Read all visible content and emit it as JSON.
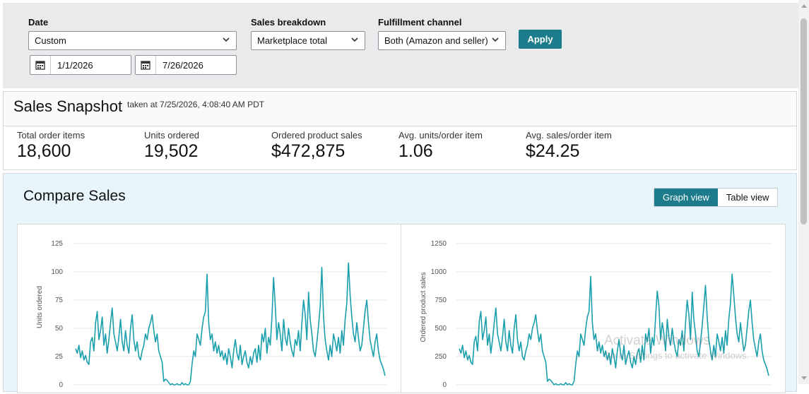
{
  "filters": {
    "date_label": "Date",
    "date_select": "Custom",
    "start_date": "1/1/2026",
    "end_date": "7/26/2026",
    "breakdown_label": "Sales breakdown",
    "breakdown_select": "Marketplace total",
    "channel_label": "Fulfillment channel",
    "channel_select": "Both (Amazon and seller)",
    "apply_label": "Apply"
  },
  "snapshot": {
    "title": "Sales Snapshot",
    "taken": "taken at 7/25/2026, 4:08:40 AM PDT",
    "metrics": [
      {
        "label": "Total order items",
        "value": "18,600"
      },
      {
        "label": "Units ordered",
        "value": "19,502"
      },
      {
        "label": "Ordered product sales",
        "value": "$472,875"
      },
      {
        "label": "Avg. units/order item",
        "value": "1.06"
      },
      {
        "label": "Avg. sales/order item",
        "value": "$24.25"
      }
    ]
  },
  "compare": {
    "title": "Compare Sales",
    "graph_view": "Graph view",
    "table_view": "Table view"
  },
  "watermark": {
    "line1": "Activate Windows",
    "line2": "Go to Settings to activate Windows."
  },
  "colors": {
    "accent": "#1c7c8c",
    "series": "#1a9fad"
  },
  "chart_data": [
    {
      "type": "line",
      "ylabel": "Units ordered",
      "ylim": [
        0,
        125
      ],
      "yticks": [
        "125",
        "100",
        "75",
        "50",
        "25",
        "0"
      ],
      "values": [
        32,
        28,
        35,
        24,
        30,
        22,
        26,
        20,
        18,
        38,
        42,
        30,
        55,
        65,
        40,
        48,
        60,
        35,
        45,
        28,
        40,
        55,
        68,
        45,
        38,
        30,
        42,
        58,
        38,
        30,
        48,
        35,
        28,
        50,
        62,
        40,
        30,
        38,
        25,
        22,
        30,
        35,
        45,
        40,
        50,
        55,
        62,
        48,
        38,
        45,
        30,
        25,
        20,
        3,
        5,
        4,
        2,
        0,
        1,
        0,
        0,
        1,
        0,
        0,
        2,
        0,
        1,
        0,
        0,
        3,
        18,
        30,
        25,
        45,
        40,
        35,
        50,
        60,
        65,
        98,
        55,
        40,
        45,
        30,
        38,
        28,
        35,
        25,
        30,
        22,
        28,
        18,
        32,
        25,
        15,
        30,
        40,
        28,
        22,
        35,
        18,
        25,
        30,
        20,
        15,
        25,
        18,
        28,
        32,
        20,
        35,
        22,
        45,
        38,
        50,
        28,
        42,
        35,
        60,
        95,
        70,
        40,
        55,
        45,
        30,
        58,
        42,
        35,
        50,
        38,
        30,
        25,
        40,
        35,
        48,
        30,
        55,
        75,
        62,
        40,
        82,
        58,
        45,
        30,
        25,
        38,
        52,
        70,
        104,
        60,
        40,
        30,
        22,
        35,
        25,
        45,
        38,
        30,
        42,
        28,
        48,
        35,
        58,
        72,
        108,
        80,
        60,
        45,
        38,
        55,
        42,
        30,
        35,
        50,
        65,
        75,
        55,
        40,
        32,
        25,
        38,
        45,
        30,
        22,
        18,
        14,
        8
      ]
    },
    {
      "type": "line",
      "ylabel": "Ordered product sales",
      "ylim": [
        0,
        1250
      ],
      "yticks": [
        "1250",
        "1000",
        "750",
        "500",
        "250",
        "0"
      ],
      "values": [
        320,
        280,
        350,
        240,
        300,
        220,
        260,
        200,
        180,
        380,
        430,
        300,
        560,
        650,
        400,
        480,
        600,
        350,
        450,
        280,
        400,
        550,
        680,
        450,
        380,
        300,
        420,
        580,
        380,
        300,
        480,
        350,
        280,
        500,
        620,
        400,
        300,
        380,
        250,
        220,
        300,
        350,
        450,
        400,
        500,
        550,
        620,
        480,
        380,
        450,
        300,
        250,
        200,
        30,
        50,
        40,
        20,
        0,
        10,
        0,
        0,
        10,
        0,
        0,
        20,
        0,
        10,
        0,
        0,
        30,
        180,
        300,
        250,
        450,
        400,
        350,
        500,
        600,
        650,
        960,
        550,
        400,
        450,
        300,
        380,
        280,
        350,
        250,
        300,
        220,
        280,
        180,
        320,
        250,
        150,
        300,
        400,
        280,
        220,
        350,
        180,
        250,
        300,
        200,
        150,
        250,
        180,
        280,
        320,
        200,
        350,
        220,
        450,
        380,
        500,
        280,
        420,
        350,
        600,
        830,
        700,
        400,
        550,
        450,
        300,
        580,
        420,
        350,
        500,
        380,
        300,
        250,
        400,
        350,
        480,
        300,
        550,
        750,
        620,
        400,
        820,
        580,
        450,
        300,
        250,
        380,
        520,
        700,
        880,
        600,
        400,
        300,
        220,
        350,
        250,
        450,
        380,
        300,
        420,
        280,
        480,
        350,
        580,
        720,
        980,
        800,
        600,
        450,
        380,
        550,
        420,
        300,
        350,
        500,
        650,
        750,
        550,
        400,
        320,
        250,
        380,
        450,
        300,
        220,
        180,
        140,
        80
      ]
    }
  ]
}
